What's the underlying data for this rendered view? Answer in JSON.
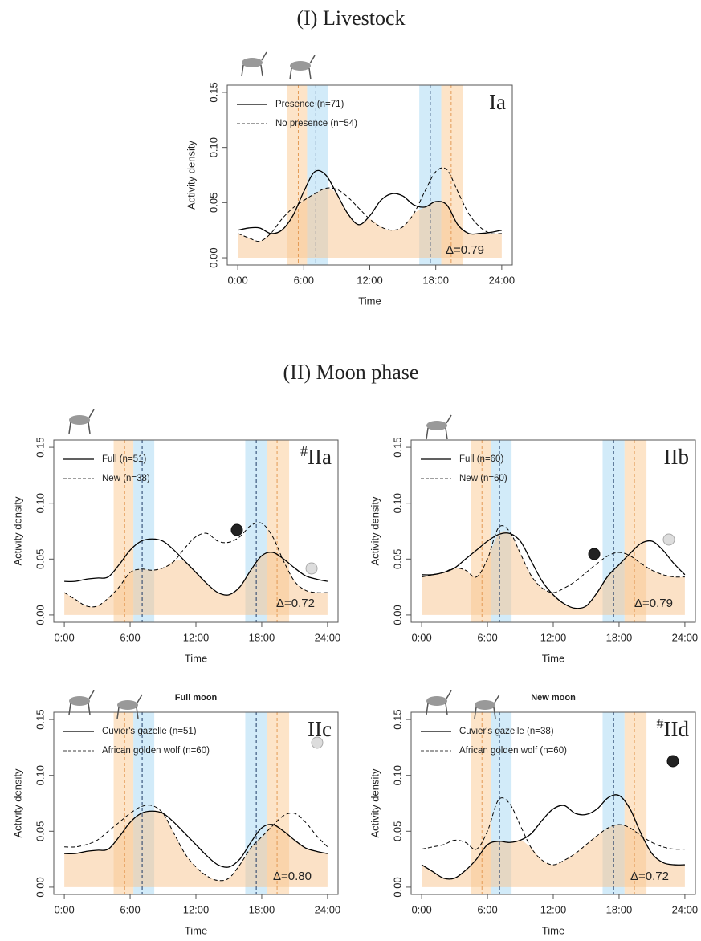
{
  "section_titles": [
    "(I) Livestock",
    "(II) Moon phase"
  ],
  "chart_data": [
    {
      "type": "line",
      "panel_label": "Ia",
      "xlabel": "Time",
      "ylabel": "Activity density",
      "annotation": "Δ=0.79",
      "x": [
        0,
        1,
        2,
        3,
        4,
        5,
        6,
        7,
        8,
        9,
        10,
        11,
        12,
        13,
        14,
        15,
        16,
        17,
        18,
        19,
        20,
        21,
        22,
        23,
        24
      ],
      "xlim": [
        0,
        24
      ],
      "xticks": [
        {
          "value": 0,
          "label": "0:00"
        },
        {
          "value": 6,
          "label": "6:00"
        },
        {
          "value": 12,
          "label": "12:00"
        },
        {
          "value": 18,
          "label": "18:00"
        },
        {
          "value": 24,
          "label": "24:00"
        }
      ],
      "ylim": [
        0,
        0.15
      ],
      "yticks": [
        {
          "value": 0,
          "label": "0.00"
        },
        0.05,
        {
          "value": 0.1,
          "label": "0.10"
        },
        0.15
      ],
      "bands": [
        {
          "start": 4.5,
          "end": 6.3,
          "color": "#fcd9b0"
        },
        {
          "start": 6.3,
          "end": 8.2,
          "color": "#bfe3f7"
        },
        {
          "start": 16.5,
          "end": 18.5,
          "color": "#bfe3f7"
        },
        {
          "start": 18.5,
          "end": 20.5,
          "color": "#fcd9b0"
        }
      ],
      "vlines": [
        {
          "x": 5.5,
          "color": "#e39a55"
        },
        {
          "x": 7.1,
          "color": "#1f3b66"
        },
        {
          "x": 17.5,
          "color": "#1f3b66"
        },
        {
          "x": 19.4,
          "color": "#e39a55"
        }
      ],
      "series": [
        {
          "name": "Presence (n=71)",
          "color": "#000000",
          "dashed": false,
          "values": [
            0.025,
            0.027,
            0.027,
            0.022,
            0.025,
            0.038,
            0.06,
            0.078,
            0.075,
            0.058,
            0.04,
            0.03,
            0.038,
            0.052,
            0.058,
            0.056,
            0.048,
            0.046,
            0.051,
            0.048,
            0.03,
            0.022,
            0.022,
            0.023,
            0.025
          ]
        },
        {
          "name": "No presence (n=54)",
          "color": "#000000",
          "dashed": true,
          "values": [
            0.022,
            0.018,
            0.015,
            0.022,
            0.035,
            0.045,
            0.052,
            0.058,
            0.063,
            0.062,
            0.055,
            0.045,
            0.035,
            0.028,
            0.025,
            0.028,
            0.04,
            0.06,
            0.078,
            0.08,
            0.06,
            0.04,
            0.028,
            0.022,
            0.022
          ]
        }
      ]
    },
    {
      "type": "line",
      "panel_marker": "#",
      "panel_label": "IIa",
      "xlabel": "Time",
      "ylabel": "Activity density",
      "annotation": "Δ=0.72",
      "x": [
        0,
        1,
        2,
        3,
        4,
        5,
        6,
        7,
        8,
        9,
        10,
        11,
        12,
        13,
        14,
        15,
        16,
        17,
        18,
        19,
        20,
        21,
        22,
        23,
        24
      ],
      "xlim": [
        0,
        24
      ],
      "xticks": [
        {
          "value": 0,
          "label": "0:00"
        },
        {
          "value": 6,
          "label": "6:00"
        },
        {
          "value": 12,
          "label": "12:00"
        },
        {
          "value": 18,
          "label": "18:00"
        },
        {
          "value": 24,
          "label": "24:00"
        }
      ],
      "ylim": [
        0,
        0.15
      ],
      "yticks": [
        {
          "value": 0,
          "label": "0.00"
        },
        0.05,
        {
          "value": 0.1,
          "label": "0.10"
        },
        0.15
      ],
      "bands": [
        {
          "start": 4.5,
          "end": 6.3,
          "color": "#fcd9b0"
        },
        {
          "start": 6.3,
          "end": 8.2,
          "color": "#bfe3f7"
        },
        {
          "start": 16.5,
          "end": 18.5,
          "color": "#bfe3f7"
        },
        {
          "start": 18.5,
          "end": 20.5,
          "color": "#fcd9b0"
        }
      ],
      "vlines": [
        {
          "x": 5.5,
          "color": "#e39a55"
        },
        {
          "x": 7.1,
          "color": "#1f3b66"
        },
        {
          "x": 17.5,
          "color": "#1f3b66"
        },
        {
          "x": 19.4,
          "color": "#e39a55"
        }
      ],
      "series": [
        {
          "name": "Full (n=51)",
          "color": "#000000",
          "dashed": false,
          "values": [
            0.03,
            0.03,
            0.032,
            0.033,
            0.034,
            0.045,
            0.058,
            0.066,
            0.068,
            0.066,
            0.058,
            0.048,
            0.038,
            0.028,
            0.02,
            0.018,
            0.025,
            0.04,
            0.053,
            0.056,
            0.05,
            0.042,
            0.035,
            0.032,
            0.03
          ]
        },
        {
          "name": "New (n=38)",
          "color": "#000000",
          "dashed": true,
          "values": [
            0.02,
            0.014,
            0.008,
            0.008,
            0.015,
            0.025,
            0.038,
            0.041,
            0.04,
            0.042,
            0.048,
            0.06,
            0.07,
            0.073,
            0.066,
            0.065,
            0.07,
            0.08,
            0.082,
            0.07,
            0.048,
            0.03,
            0.022,
            0.02,
            0.02
          ]
        }
      ]
    },
    {
      "type": "line",
      "panel_label": "IIb",
      "xlabel": "Time",
      "ylabel": "Activity density",
      "annotation": "Δ=0.79",
      "x": [
        0,
        1,
        2,
        3,
        4,
        5,
        6,
        7,
        8,
        9,
        10,
        11,
        12,
        13,
        14,
        15,
        16,
        17,
        18,
        19,
        20,
        21,
        22,
        23,
        24
      ],
      "xlim": [
        0,
        24
      ],
      "xticks": [
        {
          "value": 0,
          "label": "0:00"
        },
        {
          "value": 6,
          "label": "6:00"
        },
        {
          "value": 12,
          "label": "12:00"
        },
        {
          "value": 18,
          "label": "18:00"
        },
        {
          "value": 24,
          "label": "24:00"
        }
      ],
      "ylim": [
        0,
        0.15
      ],
      "yticks": [
        {
          "value": 0,
          "label": "0.00"
        },
        0.05,
        {
          "value": 0.1,
          "label": "0.10"
        },
        0.15
      ],
      "bands": [
        {
          "start": 4.5,
          "end": 6.3,
          "color": "#fcd9b0"
        },
        {
          "start": 6.3,
          "end": 8.2,
          "color": "#bfe3f7"
        },
        {
          "start": 16.5,
          "end": 18.5,
          "color": "#bfe3f7"
        },
        {
          "start": 18.5,
          "end": 20.5,
          "color": "#fcd9b0"
        }
      ],
      "vlines": [
        {
          "x": 5.5,
          "color": "#e39a55"
        },
        {
          "x": 7.1,
          "color": "#1f3b66"
        },
        {
          "x": 17.5,
          "color": "#1f3b66"
        },
        {
          "x": 19.4,
          "color": "#e39a55"
        }
      ],
      "series": [
        {
          "name": "Full (n=60)",
          "color": "#000000",
          "dashed": false,
          "values": [
            0.036,
            0.036,
            0.038,
            0.042,
            0.05,
            0.058,
            0.066,
            0.072,
            0.073,
            0.066,
            0.048,
            0.03,
            0.018,
            0.01,
            0.006,
            0.008,
            0.02,
            0.035,
            0.045,
            0.055,
            0.064,
            0.066,
            0.058,
            0.046,
            0.036
          ]
        },
        {
          "name": "New (n=60)",
          "color": "#000000",
          "dashed": true,
          "values": [
            0.034,
            0.036,
            0.038,
            0.042,
            0.04,
            0.034,
            0.05,
            0.078,
            0.075,
            0.055,
            0.035,
            0.024,
            0.02,
            0.024,
            0.03,
            0.038,
            0.046,
            0.053,
            0.056,
            0.053,
            0.046,
            0.04,
            0.036,
            0.034,
            0.034
          ]
        }
      ]
    },
    {
      "type": "line",
      "subtitle": "Full moon",
      "panel_label": "IIc",
      "xlabel": "Time",
      "ylabel": "Activity density",
      "annotation": "Δ=0.80",
      "x": [
        0,
        1,
        2,
        3,
        4,
        5,
        6,
        7,
        8,
        9,
        10,
        11,
        12,
        13,
        14,
        15,
        16,
        17,
        18,
        19,
        20,
        21,
        22,
        23,
        24
      ],
      "xlim": [
        0,
        24
      ],
      "xticks": [
        {
          "value": 0,
          "label": "0:00"
        },
        {
          "value": 6,
          "label": "6:00"
        },
        {
          "value": 12,
          "label": "12:00"
        },
        {
          "value": 18,
          "label": "18:00"
        },
        {
          "value": 24,
          "label": "24:00"
        }
      ],
      "ylim": [
        0,
        0.15
      ],
      "yticks": [
        {
          "value": 0,
          "label": "0.00"
        },
        0.05,
        {
          "value": 0.1,
          "label": "0.10"
        },
        0.15
      ],
      "bands": [
        {
          "start": 4.5,
          "end": 6.3,
          "color": "#fcd9b0"
        },
        {
          "start": 6.3,
          "end": 8.2,
          "color": "#bfe3f7"
        },
        {
          "start": 16.5,
          "end": 18.5,
          "color": "#bfe3f7"
        },
        {
          "start": 18.5,
          "end": 20.5,
          "color": "#fcd9b0"
        }
      ],
      "vlines": [
        {
          "x": 5.5,
          "color": "#e39a55"
        },
        {
          "x": 7.1,
          "color": "#1f3b66"
        },
        {
          "x": 17.5,
          "color": "#1f3b66"
        },
        {
          "x": 19.4,
          "color": "#e39a55"
        }
      ],
      "series": [
        {
          "name": "Cuvier's gazelle (n=51)",
          "color": "#000000",
          "dashed": false,
          "values": [
            0.03,
            0.03,
            0.032,
            0.033,
            0.034,
            0.045,
            0.058,
            0.066,
            0.068,
            0.066,
            0.058,
            0.048,
            0.038,
            0.028,
            0.02,
            0.018,
            0.025,
            0.04,
            0.053,
            0.056,
            0.05,
            0.042,
            0.035,
            0.032,
            0.03
          ]
        },
        {
          "name": "African golden wolf (n=60)",
          "color": "#000000",
          "dashed": true,
          "values": [
            0.036,
            0.036,
            0.038,
            0.042,
            0.05,
            0.058,
            0.066,
            0.072,
            0.073,
            0.066,
            0.048,
            0.03,
            0.018,
            0.01,
            0.006,
            0.008,
            0.02,
            0.035,
            0.045,
            0.055,
            0.064,
            0.066,
            0.058,
            0.046,
            0.036
          ]
        }
      ]
    },
    {
      "type": "line",
      "subtitle": "New moon",
      "panel_marker": "#",
      "panel_label": "IId",
      "xlabel": "Time",
      "ylabel": "Activity density",
      "annotation": "Δ=0.72",
      "x": [
        0,
        1,
        2,
        3,
        4,
        5,
        6,
        7,
        8,
        9,
        10,
        11,
        12,
        13,
        14,
        15,
        16,
        17,
        18,
        19,
        20,
        21,
        22,
        23,
        24
      ],
      "xlim": [
        0,
        24
      ],
      "xticks": [
        {
          "value": 0,
          "label": "0:00"
        },
        {
          "value": 6,
          "label": "6:00"
        },
        {
          "value": 12,
          "label": "12:00"
        },
        {
          "value": 18,
          "label": "18:00"
        },
        {
          "value": 24,
          "label": "24:00"
        }
      ],
      "ylim": [
        0,
        0.15
      ],
      "yticks": [
        {
          "value": 0,
          "label": "0.00"
        },
        0.05,
        {
          "value": 0.1,
          "label": "0.10"
        },
        0.15
      ],
      "bands": [
        {
          "start": 4.5,
          "end": 6.3,
          "color": "#fcd9b0"
        },
        {
          "start": 6.3,
          "end": 8.2,
          "color": "#bfe3f7"
        },
        {
          "start": 16.5,
          "end": 18.5,
          "color": "#bfe3f7"
        },
        {
          "start": 18.5,
          "end": 20.5,
          "color": "#fcd9b0"
        }
      ],
      "vlines": [
        {
          "x": 5.5,
          "color": "#e39a55"
        },
        {
          "x": 7.1,
          "color": "#1f3b66"
        },
        {
          "x": 17.5,
          "color": "#1f3b66"
        },
        {
          "x": 19.4,
          "color": "#e39a55"
        }
      ],
      "series": [
        {
          "name": "Cuvier's gazelle (n=38)",
          "color": "#000000",
          "dashed": false,
          "values": [
            0.02,
            0.014,
            0.008,
            0.008,
            0.015,
            0.025,
            0.038,
            0.041,
            0.04,
            0.042,
            0.048,
            0.06,
            0.07,
            0.073,
            0.066,
            0.065,
            0.07,
            0.08,
            0.082,
            0.07,
            0.048,
            0.03,
            0.022,
            0.02,
            0.02
          ]
        },
        {
          "name": "African golden wolf (n=60)",
          "color": "#000000",
          "dashed": true,
          "values": [
            0.034,
            0.036,
            0.038,
            0.042,
            0.04,
            0.034,
            0.05,
            0.078,
            0.075,
            0.055,
            0.035,
            0.024,
            0.02,
            0.024,
            0.03,
            0.038,
            0.046,
            0.053,
            0.056,
            0.053,
            0.046,
            0.04,
            0.036,
            0.034,
            0.034
          ]
        }
      ]
    }
  ]
}
